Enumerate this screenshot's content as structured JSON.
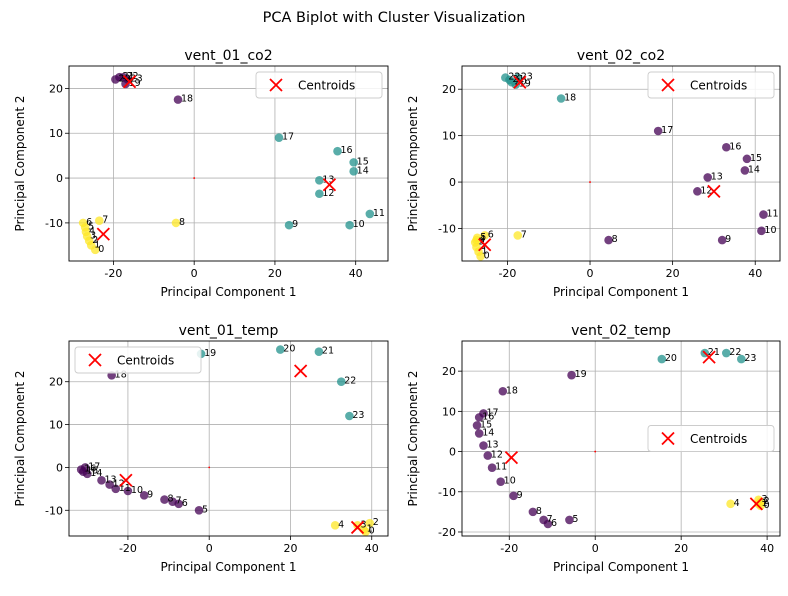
{
  "suptitle": "PCA Biplot with Cluster Visualization",
  "colors": {
    "purple": "#440154",
    "teal": "#21918c",
    "yellow": "#fde725",
    "centroid": "#ff0000",
    "grid": "#b0b0b0"
  },
  "chart_data": [
    {
      "type": "scatter",
      "title": "vent_01_co2",
      "xlabel": "Principal Component 1",
      "ylabel": "Principal Component 2",
      "xlim": [
        -31,
        48
      ],
      "ylim": [
        -18.5,
        25
      ],
      "xticks": [
        -20,
        0,
        20,
        40
      ],
      "yticks": [
        -10,
        0,
        10,
        20
      ],
      "grid": true,
      "legend": {
        "label": "Centroids",
        "placement": "top-right"
      },
      "points": [
        {
          "label": "0",
          "x": -24.5,
          "y": -16,
          "cluster": "yellow"
        },
        {
          "label": "1",
          "x": -25.5,
          "y": -15,
          "cluster": "yellow"
        },
        {
          "label": "2",
          "x": -26.0,
          "y": -14,
          "cluster": "yellow"
        },
        {
          "label": "3",
          "x": -26.5,
          "y": -13,
          "cluster": "yellow"
        },
        {
          "label": "4",
          "x": -26.8,
          "y": -12,
          "cluster": "yellow"
        },
        {
          "label": "5",
          "x": -27.0,
          "y": -11,
          "cluster": "yellow"
        },
        {
          "label": "6",
          "x": -27.5,
          "y": -10,
          "cluster": "yellow"
        },
        {
          "label": "7",
          "x": -23.5,
          "y": -9.5,
          "cluster": "yellow"
        },
        {
          "label": "8",
          "x": -4.5,
          "y": -10,
          "cluster": "yellow"
        },
        {
          "label": "9",
          "x": 23.5,
          "y": -10.5,
          "cluster": "teal"
        },
        {
          "label": "10",
          "x": 38.5,
          "y": -10.5,
          "cluster": "teal"
        },
        {
          "label": "11",
          "x": 43.5,
          "y": -8,
          "cluster": "teal"
        },
        {
          "label": "12",
          "x": 31,
          "y": -3.5,
          "cluster": "teal"
        },
        {
          "label": "13",
          "x": 31,
          "y": -0.5,
          "cluster": "teal"
        },
        {
          "label": "14",
          "x": 39.5,
          "y": 1.5,
          "cluster": "teal"
        },
        {
          "label": "15",
          "x": 39.5,
          "y": 3.5,
          "cluster": "teal"
        },
        {
          "label": "16",
          "x": 35.5,
          "y": 6,
          "cluster": "teal"
        },
        {
          "label": "17",
          "x": 21,
          "y": 9,
          "cluster": "teal"
        },
        {
          "label": "18",
          "x": -4,
          "y": 17.5,
          "cluster": "purple"
        },
        {
          "label": "19",
          "x": -17,
          "y": 21,
          "cluster": "purple"
        },
        {
          "label": "20",
          "x": -19.5,
          "y": 22,
          "cluster": "purple"
        },
        {
          "label": "21",
          "x": -18.5,
          "y": 22.5,
          "cluster": "purple"
        },
        {
          "label": "22",
          "x": -17.5,
          "y": 22.5,
          "cluster": "purple"
        },
        {
          "label": "23",
          "x": -16.5,
          "y": 22,
          "cluster": "purple"
        }
      ],
      "centroids": [
        {
          "x": -22.5,
          "y": -12.5
        },
        {
          "x": 33.5,
          "y": -1.5
        },
        {
          "x": -16,
          "y": 21.5
        }
      ]
    },
    {
      "type": "scatter",
      "title": "vent_02_co2",
      "xlabel": "Principal Component 1",
      "ylabel": "Principal Component 2",
      "xlim": [
        -31,
        46
      ],
      "ylim": [
        -17,
        25
      ],
      "xticks": [
        -20,
        0,
        20,
        40
      ],
      "yticks": [
        -10,
        0,
        10,
        20
      ],
      "grid": true,
      "legend": {
        "label": "Centroids",
        "placement": "top-right"
      },
      "points": [
        {
          "label": "0",
          "x": -26.5,
          "y": -16,
          "cluster": "yellow"
        },
        {
          "label": "1",
          "x": -27.0,
          "y": -15,
          "cluster": "yellow"
        },
        {
          "label": "2",
          "x": -27.5,
          "y": -14,
          "cluster": "yellow"
        },
        {
          "label": "3",
          "x": -27.8,
          "y": -13,
          "cluster": "yellow"
        },
        {
          "label": "4",
          "x": -27.5,
          "y": -12.5,
          "cluster": "yellow"
        },
        {
          "label": "5",
          "x": -27.3,
          "y": -12,
          "cluster": "yellow"
        },
        {
          "label": "6",
          "x": -25.5,
          "y": -11.5,
          "cluster": "yellow"
        },
        {
          "label": "7",
          "x": -17.5,
          "y": -11.5,
          "cluster": "yellow"
        },
        {
          "label": "8",
          "x": 4.5,
          "y": -12.5,
          "cluster": "purple"
        },
        {
          "label": "9",
          "x": 32,
          "y": -12.5,
          "cluster": "purple"
        },
        {
          "label": "10",
          "x": 41.5,
          "y": -10.5,
          "cluster": "purple"
        },
        {
          "label": "11",
          "x": 42,
          "y": -7,
          "cluster": "purple"
        },
        {
          "label": "12",
          "x": 26,
          "y": -2,
          "cluster": "purple"
        },
        {
          "label": "13",
          "x": 28.5,
          "y": 1,
          "cluster": "purple"
        },
        {
          "label": "14",
          "x": 37.5,
          "y": 2.5,
          "cluster": "purple"
        },
        {
          "label": "15",
          "x": 38,
          "y": 5,
          "cluster": "purple"
        },
        {
          "label": "16",
          "x": 33,
          "y": 7.5,
          "cluster": "purple"
        },
        {
          "label": "17",
          "x": 16.5,
          "y": 11,
          "cluster": "purple"
        },
        {
          "label": "18",
          "x": -7,
          "y": 18,
          "cluster": "teal"
        },
        {
          "label": "19",
          "x": -18,
          "y": 21,
          "cluster": "teal"
        },
        {
          "label": "20",
          "x": -19,
          "y": 21.5,
          "cluster": "teal"
        },
        {
          "label": "21",
          "x": -19.5,
          "y": 22,
          "cluster": "teal"
        },
        {
          "label": "22",
          "x": -20.5,
          "y": 22.5,
          "cluster": "teal"
        },
        {
          "label": "23",
          "x": -17.5,
          "y": 22.5,
          "cluster": "teal"
        }
      ],
      "centroids": [
        {
          "x": -25.5,
          "y": -13.5
        },
        {
          "x": 30,
          "y": -2
        },
        {
          "x": -17,
          "y": 21.5
        }
      ]
    },
    {
      "type": "scatter",
      "title": "vent_01_temp",
      "xlabel": "Principal Component 1",
      "ylabel": "Principal Component 2",
      "xlim": [
        -34.5,
        44
      ],
      "ylim": [
        -16,
        29.5
      ],
      "xticks": [
        -20,
        0,
        20,
        40
      ],
      "yticks": [
        -10,
        0,
        10,
        20
      ],
      "grid": true,
      "legend": {
        "label": "Centroids",
        "placement": "top-left"
      },
      "points": [
        {
          "label": "0",
          "x": 38.5,
          "y": -15,
          "cluster": "yellow"
        },
        {
          "label": "1",
          "x": 38,
          "y": -14.5,
          "cluster": "yellow"
        },
        {
          "label": "2",
          "x": 39.5,
          "y": -13,
          "cluster": "yellow"
        },
        {
          "label": "3",
          "x": 36.5,
          "y": -13.5,
          "cluster": "yellow"
        },
        {
          "label": "4",
          "x": 31,
          "y": -13.5,
          "cluster": "yellow"
        },
        {
          "label": "5",
          "x": -2.5,
          "y": -10,
          "cluster": "purple"
        },
        {
          "label": "6",
          "x": -7.5,
          "y": -8.5,
          "cluster": "purple"
        },
        {
          "label": "7",
          "x": -9,
          "y": -8,
          "cluster": "purple"
        },
        {
          "label": "8",
          "x": -11,
          "y": -7.5,
          "cluster": "purple"
        },
        {
          "label": "9",
          "x": -16,
          "y": -6.5,
          "cluster": "purple"
        },
        {
          "label": "10",
          "x": -20,
          "y": -5.5,
          "cluster": "purple"
        },
        {
          "label": "11",
          "x": -23,
          "y": -5,
          "cluster": "purple"
        },
        {
          "label": "12",
          "x": -24.5,
          "y": -4,
          "cluster": "purple"
        },
        {
          "label": "13",
          "x": -26.5,
          "y": -3,
          "cluster": "purple"
        },
        {
          "label": "14",
          "x": -30,
          "y": -1.5,
          "cluster": "purple"
        },
        {
          "label": "15",
          "x": -31,
          "y": -1,
          "cluster": "purple"
        },
        {
          "label": "16",
          "x": -31.5,
          "y": -0.5,
          "cluster": "purple"
        },
        {
          "label": "17",
          "x": -30.5,
          "y": 0,
          "cluster": "purple"
        },
        {
          "label": "18",
          "x": -24,
          "y": 21.5,
          "cluster": "purple"
        },
        {
          "label": "19",
          "x": -2,
          "y": 26.5,
          "cluster": "teal"
        },
        {
          "label": "20",
          "x": 17.5,
          "y": 27.5,
          "cluster": "teal"
        },
        {
          "label": "21",
          "x": 27,
          "y": 27,
          "cluster": "teal"
        },
        {
          "label": "22",
          "x": 32.5,
          "y": 20,
          "cluster": "teal"
        },
        {
          "label": "23",
          "x": 34.5,
          "y": 12,
          "cluster": "teal"
        }
      ],
      "centroids": [
        {
          "x": 36.5,
          "y": -14
        },
        {
          "x": -20.5,
          "y": -3
        },
        {
          "x": 22.5,
          "y": 22.5
        }
      ]
    },
    {
      "type": "scatter",
      "title": "vent_02_temp",
      "xlabel": "Principal Component 1",
      "ylabel": "Principal Component 2",
      "xlim": [
        -31,
        43
      ],
      "ylim": [
        -21,
        27.5
      ],
      "xticks": [
        -20,
        0,
        20,
        40
      ],
      "yticks": [
        -20,
        -10,
        0,
        10,
        20
      ],
      "grid": true,
      "legend": {
        "label": "Centroids",
        "placement": "center-right"
      },
      "points": [
        {
          "label": "0",
          "x": 38.5,
          "y": -13.5,
          "cluster": "yellow"
        },
        {
          "label": "1",
          "x": 38,
          "y": -13,
          "cluster": "yellow"
        },
        {
          "label": "2",
          "x": 38.5,
          "y": -12.5,
          "cluster": "yellow"
        },
        {
          "label": "3",
          "x": 38,
          "y": -12,
          "cluster": "yellow"
        },
        {
          "label": "4",
          "x": 31.5,
          "y": -13,
          "cluster": "yellow"
        },
        {
          "label": "5",
          "x": -6,
          "y": -17,
          "cluster": "purple"
        },
        {
          "label": "6",
          "x": -11,
          "y": -18,
          "cluster": "purple"
        },
        {
          "label": "7",
          "x": -12,
          "y": -17,
          "cluster": "purple"
        },
        {
          "label": "8",
          "x": -14.5,
          "y": -15,
          "cluster": "purple"
        },
        {
          "label": "9",
          "x": -19,
          "y": -11,
          "cluster": "purple"
        },
        {
          "label": "10",
          "x": -22,
          "y": -7.5,
          "cluster": "purple"
        },
        {
          "label": "11",
          "x": -24,
          "y": -4,
          "cluster": "purple"
        },
        {
          "label": "12",
          "x": -25,
          "y": -1,
          "cluster": "purple"
        },
        {
          "label": "13",
          "x": -26,
          "y": 1.5,
          "cluster": "purple"
        },
        {
          "label": "14",
          "x": -27,
          "y": 4.5,
          "cluster": "purple"
        },
        {
          "label": "15",
          "x": -27.5,
          "y": 6.5,
          "cluster": "purple"
        },
        {
          "label": "16",
          "x": -27,
          "y": 8.5,
          "cluster": "purple"
        },
        {
          "label": "17",
          "x": -26,
          "y": 9.5,
          "cluster": "purple"
        },
        {
          "label": "18",
          "x": -21.5,
          "y": 15,
          "cluster": "purple"
        },
        {
          "label": "19",
          "x": -5.5,
          "y": 19,
          "cluster": "purple"
        },
        {
          "label": "20",
          "x": 15.5,
          "y": 23,
          "cluster": "teal"
        },
        {
          "label": "21",
          "x": 25.5,
          "y": 24.5,
          "cluster": "teal"
        },
        {
          "label": "22",
          "x": 30.5,
          "y": 24.5,
          "cluster": "teal"
        },
        {
          "label": "23",
          "x": 34,
          "y": 23,
          "cluster": "teal"
        }
      ],
      "centroids": [
        {
          "x": 37.5,
          "y": -13
        },
        {
          "x": -19.5,
          "y": -1.5
        },
        {
          "x": 26.5,
          "y": 23.5
        }
      ]
    }
  ]
}
